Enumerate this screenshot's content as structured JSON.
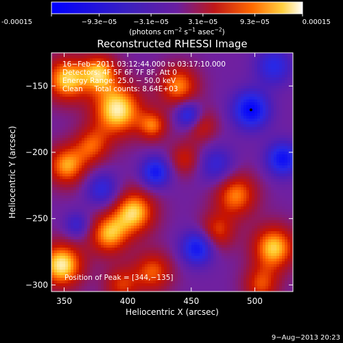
{
  "chart_data": {
    "type": "heatmap",
    "title": "Reconstructed RHESSI Image",
    "xlabel": "Heliocentric X (arcsec)",
    "ylabel": "Heliocentric Y (arcsec)",
    "xlim": [
      340,
      530
    ],
    "ylim": [
      -305,
      -125
    ],
    "x_ticks": [
      350,
      400,
      450,
      500
    ],
    "y_ticks": [
      -150,
      -200,
      -250,
      -300
    ],
    "colorbar": {
      "ticks": [
        "-0.00015",
        "−9.3e−05",
        "−3.1e−05",
        "3.1e−05",
        "9.3e−05",
        "0.00015"
      ],
      "values": [
        -0.00015,
        -9.3e-05,
        -3.1e-05,
        3.1e-05,
        9.3e-05,
        0.00015
      ],
      "label_text": "(photons cm",
      "label_sup1": "−2",
      "label_mid": " s",
      "label_sup2": "−1",
      "label_end": " asec",
      "label_sup3": "−2",
      "label_close": ")",
      "range": [
        -0.00015,
        0.00015
      ]
    },
    "annotations": [
      "16−Feb−2011 03:12:44.000 to 03:17:10.000",
      "Detectors: 4F 5F 6F 7F 8F, Att 0",
      "Energy Range: 25.0 − 50.0 keV",
      "Clean     Total counts: 8.64E+03"
    ],
    "peak_label": "Position of Peak = [344,−135]",
    "peak_position": [
      344,
      -135
    ],
    "marker": [
      497,
      -168
    ],
    "colors": {
      "background": "#000000",
      "neg_min": "#0000ff",
      "neutral": "#7020a0",
      "pos_max": "#ffffff"
    },
    "blobs": [
      {
        "x": 392,
        "y": -168,
        "a": 0.95,
        "s": 14
      },
      {
        "x": 378,
        "y": -140,
        "a": 0.75,
        "s": 10
      },
      {
        "x": 352,
        "y": -145,
        "a": 0.85,
        "s": 12
      },
      {
        "x": 372,
        "y": -195,
        "a": 0.55,
        "s": 10
      },
      {
        "x": 440,
        "y": -150,
        "a": 0.7,
        "s": 11
      },
      {
        "x": 420,
        "y": -180,
        "a": 0.6,
        "s": 8
      },
      {
        "x": 352,
        "y": -210,
        "a": 0.75,
        "s": 11
      },
      {
        "x": 405,
        "y": -245,
        "a": 0.85,
        "s": 12
      },
      {
        "x": 385,
        "y": -262,
        "a": 0.75,
        "s": 11
      },
      {
        "x": 348,
        "y": -285,
        "a": 0.95,
        "s": 12
      },
      {
        "x": 420,
        "y": -290,
        "a": 0.6,
        "s": 11
      },
      {
        "x": 395,
        "y": -300,
        "a": 0.5,
        "s": 10
      },
      {
        "x": 485,
        "y": -232,
        "a": 0.7,
        "s": 12
      },
      {
        "x": 470,
        "y": -260,
        "a": 0.55,
        "s": 10
      },
      {
        "x": 515,
        "y": -272,
        "a": 0.85,
        "s": 12
      },
      {
        "x": 505,
        "y": -300,
        "a": 0.55,
        "s": 10
      },
      {
        "x": 445,
        "y": -205,
        "a": 0.45,
        "s": 9
      },
      {
        "x": 458,
        "y": -180,
        "a": 0.45,
        "s": 9
      },
      {
        "x": 497,
        "y": -168,
        "a": -0.95,
        "s": 10
      },
      {
        "x": 522,
        "y": -205,
        "a": -0.85,
        "s": 9
      },
      {
        "x": 422,
        "y": -215,
        "a": -0.8,
        "s": 8
      },
      {
        "x": 448,
        "y": -172,
        "a": -0.75,
        "s": 7
      },
      {
        "x": 455,
        "y": -272,
        "a": -0.85,
        "s": 9
      },
      {
        "x": 380,
        "y": -228,
        "a": -0.55,
        "s": 9
      },
      {
        "x": 470,
        "y": -210,
        "a": -0.5,
        "s": 10
      },
      {
        "x": 515,
        "y": -135,
        "a": -0.6,
        "s": 10
      },
      {
        "x": 360,
        "y": -255,
        "a": -0.45,
        "s": 7
      }
    ]
  },
  "footer": {
    "timestamp": "9−Aug−2013 20:23"
  }
}
